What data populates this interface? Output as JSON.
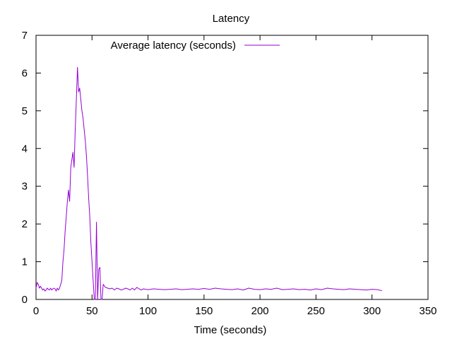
{
  "chart_data": {
    "type": "line",
    "title": "Latency",
    "xlabel": "Time (seconds)",
    "ylabel": "",
    "xlim": [
      0,
      350
    ],
    "ylim": [
      0,
      7
    ],
    "xticks": [
      0,
      50,
      100,
      150,
      200,
      250,
      300,
      350
    ],
    "yticks": [
      0,
      1,
      2,
      3,
      4,
      5,
      6,
      7
    ],
    "grid": false,
    "legend_position": "top-left",
    "series": [
      {
        "name": "Average latency (seconds)",
        "color": "#9400d3",
        "x": [
          0,
          1,
          2,
          3,
          4,
          5,
          6,
          7,
          8,
          9,
          10,
          11,
          12,
          13,
          14,
          15,
          16,
          17,
          18,
          19,
          20,
          21,
          22,
          23,
          24,
          25,
          26,
          27,
          28,
          29,
          30,
          31,
          32,
          33,
          34,
          35,
          36,
          37,
          38,
          39,
          40,
          41,
          42,
          43,
          44,
          45,
          46,
          47,
          48,
          49,
          50,
          51,
          52,
          53,
          54,
          55,
          56,
          57,
          58,
          59,
          60,
          62,
          64,
          66,
          68,
          70,
          72,
          74,
          76,
          78,
          80,
          82,
          84,
          86,
          88,
          90,
          92,
          94,
          96,
          98,
          100,
          105,
          110,
          115,
          120,
          125,
          130,
          135,
          140,
          145,
          150,
          155,
          160,
          165,
          170,
          175,
          180,
          185,
          190,
          195,
          200,
          205,
          210,
          215,
          220,
          225,
          230,
          235,
          240,
          245,
          250,
          255,
          260,
          265,
          270,
          275,
          280,
          285,
          290,
          295,
          300,
          305,
          309
        ],
        "y": [
          0.3,
          0.45,
          0.4,
          0.3,
          0.35,
          0.3,
          0.25,
          0.28,
          0.22,
          0.25,
          0.3,
          0.27,
          0.25,
          0.3,
          0.25,
          0.28,
          0.3,
          0.28,
          0.22,
          0.3,
          0.25,
          0.3,
          0.4,
          0.5,
          1.0,
          1.3,
          1.8,
          2.2,
          2.6,
          2.9,
          2.6,
          3.5,
          3.7,
          3.9,
          3.5,
          4.5,
          5.3,
          6.15,
          5.5,
          5.6,
          5.3,
          5.0,
          4.8,
          4.5,
          4.2,
          3.8,
          3.3,
          2.7,
          2.2,
          1.5,
          1.0,
          0.5,
          0.0,
          0.0,
          2.05,
          0.0,
          0.8,
          0.85,
          0.0,
          0.0,
          0.4,
          0.32,
          0.3,
          0.28,
          0.3,
          0.25,
          0.3,
          0.28,
          0.25,
          0.27,
          0.3,
          0.28,
          0.25,
          0.3,
          0.25,
          0.32,
          0.28,
          0.25,
          0.28,
          0.27,
          0.26,
          0.28,
          0.27,
          0.26,
          0.27,
          0.28,
          0.26,
          0.27,
          0.28,
          0.27,
          0.29,
          0.27,
          0.3,
          0.28,
          0.27,
          0.26,
          0.28,
          0.25,
          0.3,
          0.27,
          0.26,
          0.28,
          0.27,
          0.3,
          0.26,
          0.27,
          0.28,
          0.26,
          0.27,
          0.25,
          0.28,
          0.26,
          0.3,
          0.28,
          0.27,
          0.26,
          0.28,
          0.27,
          0.26,
          0.25,
          0.27,
          0.26,
          0.23
        ]
      }
    ]
  }
}
